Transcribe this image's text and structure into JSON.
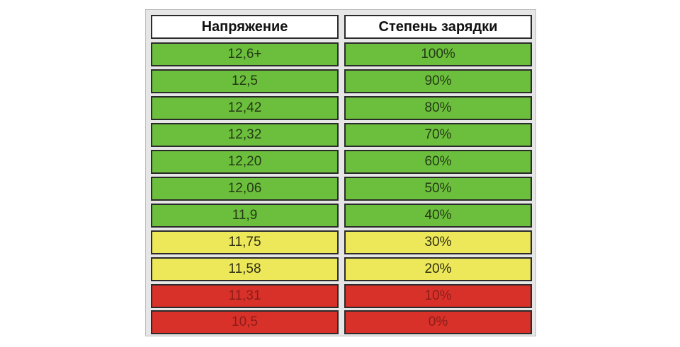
{
  "table": {
    "headers": [
      "Напряжение",
      "Степень зарядки"
    ],
    "colors": {
      "green": "#6cbf3c",
      "yellow": "#ece85a",
      "red": "#d8312a",
      "header": "#ffffff"
    },
    "rows": [
      {
        "voltage": "12,6+",
        "charge": "100%",
        "status": "green"
      },
      {
        "voltage": "12,5",
        "charge": "90%",
        "status": "green"
      },
      {
        "voltage": "12,42",
        "charge": "80%",
        "status": "green"
      },
      {
        "voltage": "12,32",
        "charge": "70%",
        "status": "green"
      },
      {
        "voltage": "12,20",
        "charge": "60%",
        "status": "green"
      },
      {
        "voltage": "12,06",
        "charge": "50%",
        "status": "green"
      },
      {
        "voltage": "11,9",
        "charge": "40%",
        "status": "green"
      },
      {
        "voltage": "11,75",
        "charge": "30%",
        "status": "yellow"
      },
      {
        "voltage": "11,58",
        "charge": "20%",
        "status": "yellow"
      },
      {
        "voltage": "11,31",
        "charge": "10%",
        "status": "red"
      },
      {
        "voltage": "10,5",
        "charge": "0%",
        "status": "red"
      }
    ]
  }
}
